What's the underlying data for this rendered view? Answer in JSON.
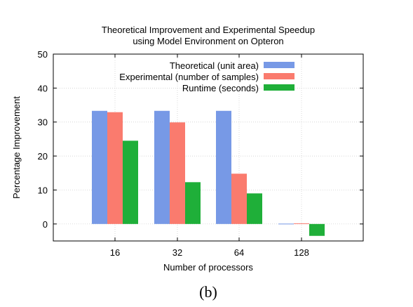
{
  "chart_data": {
    "type": "bar",
    "title": [
      "Theoretical Improvement and Experimental Speedup",
      "using Model Environment on Opteron"
    ],
    "xlabel": "Number of processors",
    "ylabel": "Percentage Improvement",
    "categories": [
      "16",
      "32",
      "64",
      "128"
    ],
    "ylim": [
      -5,
      50
    ],
    "yticks": [
      0,
      10,
      20,
      30,
      40,
      50
    ],
    "grid": true,
    "legend_position": "top-right",
    "series": [
      {
        "name": "Theoretical (unit area)",
        "color": "#7799e6",
        "values": [
          33.3,
          33.3,
          33.3,
          0.1
        ]
      },
      {
        "name": "Experimental (number of samples)",
        "color": "#fa7b6e",
        "values": [
          32.9,
          29.9,
          14.8,
          0.2
        ]
      },
      {
        "name": "Runtime (seconds)",
        "color": "#1faf39",
        "values": [
          24.5,
          12.3,
          9.0,
          -3.5
        ]
      }
    ]
  },
  "caption": "(b)"
}
